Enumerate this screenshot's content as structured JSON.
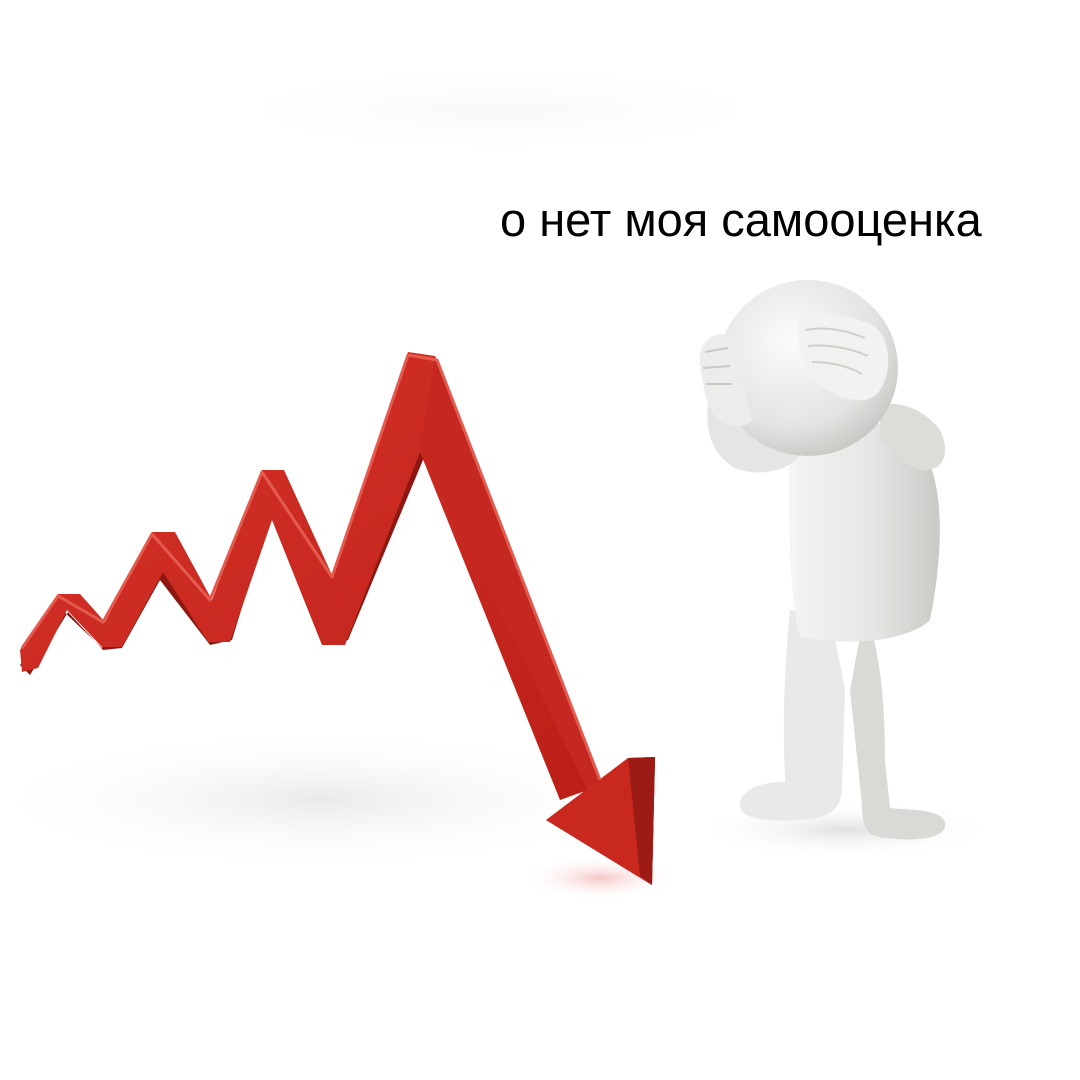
{
  "caption": "о нет моя самооценка",
  "colors": {
    "background": "#ffffff",
    "arrow_front": "#c9281f",
    "arrow_side": "#8e1611",
    "figure_body": "#e8e8e6",
    "figure_shade": "#c6c6c3",
    "caption_text": "#000000"
  },
  "icons": {
    "arrow": "falling-red-arrow-icon",
    "figure": "stressed-3d-figure-icon"
  }
}
